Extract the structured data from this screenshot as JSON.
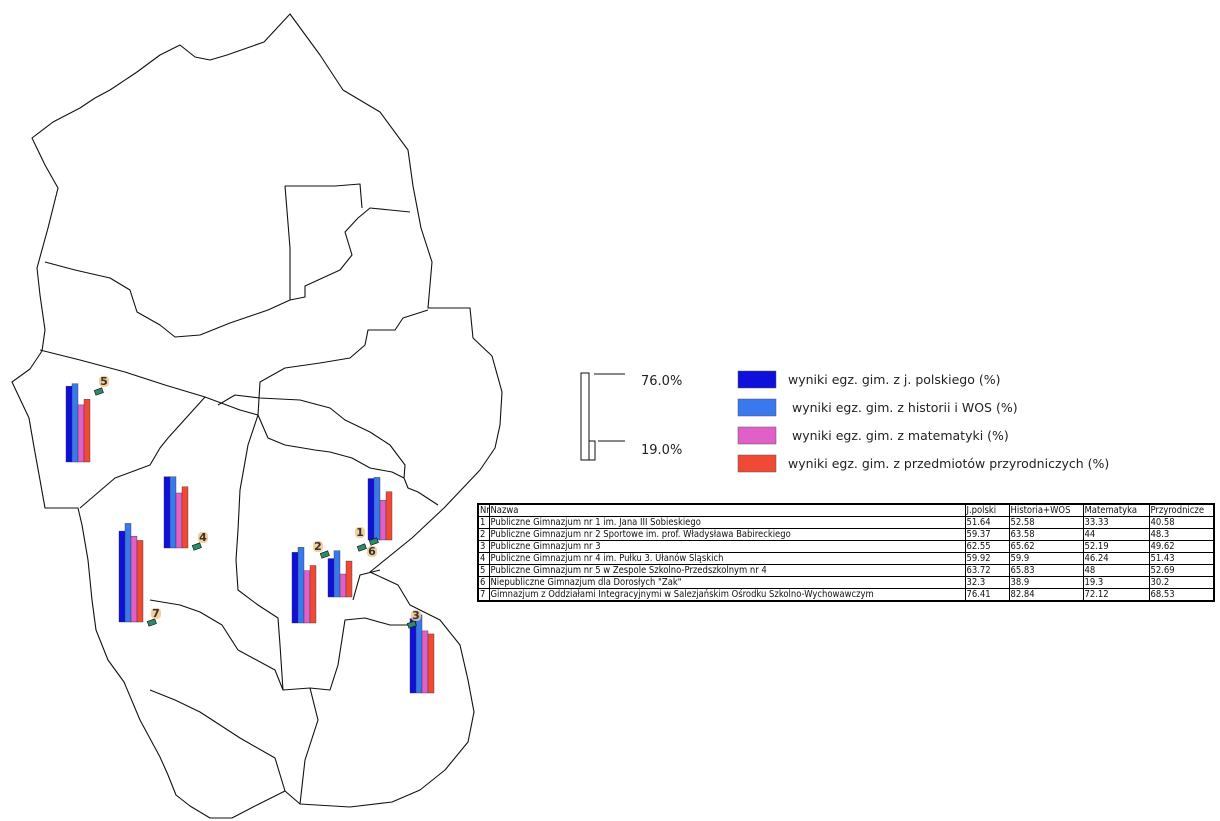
{
  "legend": {
    "scale_max": "76.0%",
    "scale_min": "19.0%",
    "items": [
      {
        "label": "wyniki egz. gim. z j. polskiego (%)",
        "color": "#1010dd"
      },
      {
        "label": "wyniki egz. gim. z historii i WOS (%)",
        "color": "#3a78ee"
      },
      {
        "label": "wyniki egz. gim. z matematyki (%)",
        "color": "#e060c8"
      },
      {
        "label": "wyniki egz. gim. z przedmiotów przyrodniczych (%)",
        "color": "#f04a36"
      }
    ]
  },
  "table": {
    "headers": [
      "Nr",
      "Nazwa",
      "J.polski",
      "Historia+WOS",
      "Matematyka",
      "Przyrodnicze"
    ],
    "rows": [
      [
        "1",
        "Publiczne Gimnazjum nr 1 im. Jana III Sobieskiego",
        "51.64",
        "52.58",
        "33.33",
        "40.58"
      ],
      [
        "2",
        "Publiczne Gimnazjum nr 2 Sportowe im. prof. Władysława Babireckiego",
        "59.37",
        "63.58",
        "44",
        "48.3"
      ],
      [
        "3",
        "Publiczne Gimnazjum nr 3",
        "62.55",
        "65.62",
        "52.19",
        "49.62"
      ],
      [
        "4",
        "Publiczne Gimnazjum nr 4 im. Pułku 3. Ułanów Śląskich",
        "59.92",
        "59.9",
        "46.24",
        "51.43"
      ],
      [
        "5",
        "Publiczne Gimnazjum nr 5 w Zespole Szkolno-Przedszkolnym nr 4",
        "63.72",
        "65.83",
        "48",
        "52.69"
      ],
      [
        "6",
        "Niepubliczne Gimnazjum dla Dorosłych \"Żak\"",
        "32.3",
        "38.9",
        "19.3",
        "30.2"
      ],
      [
        "7",
        "Gimnazjum z Oddziałami Integracyjnymi w Salezjańskim Ośrodku Szkolno-Wychowawczym",
        "76.41",
        "82.84",
        "72.12",
        "68.53"
      ]
    ]
  },
  "school_markers": [
    {
      "nr": "1",
      "values": [
        51.64,
        52.58,
        33.33,
        40.58
      ]
    },
    {
      "nr": "2",
      "values": [
        59.37,
        63.58,
        44,
        48.3
      ]
    },
    {
      "nr": "3",
      "values": [
        62.55,
        65.62,
        52.19,
        49.62
      ]
    },
    {
      "nr": "4",
      "values": [
        59.92,
        59.9,
        46.24,
        51.43
      ]
    },
    {
      "nr": "5",
      "values": [
        63.72,
        65.83,
        48,
        52.69
      ]
    },
    {
      "nr": "6",
      "values": [
        32.3,
        38.9,
        19.3,
        30.2
      ]
    },
    {
      "nr": "7",
      "values": [
        76.41,
        82.84,
        72.12,
        68.53
      ]
    }
  ]
}
